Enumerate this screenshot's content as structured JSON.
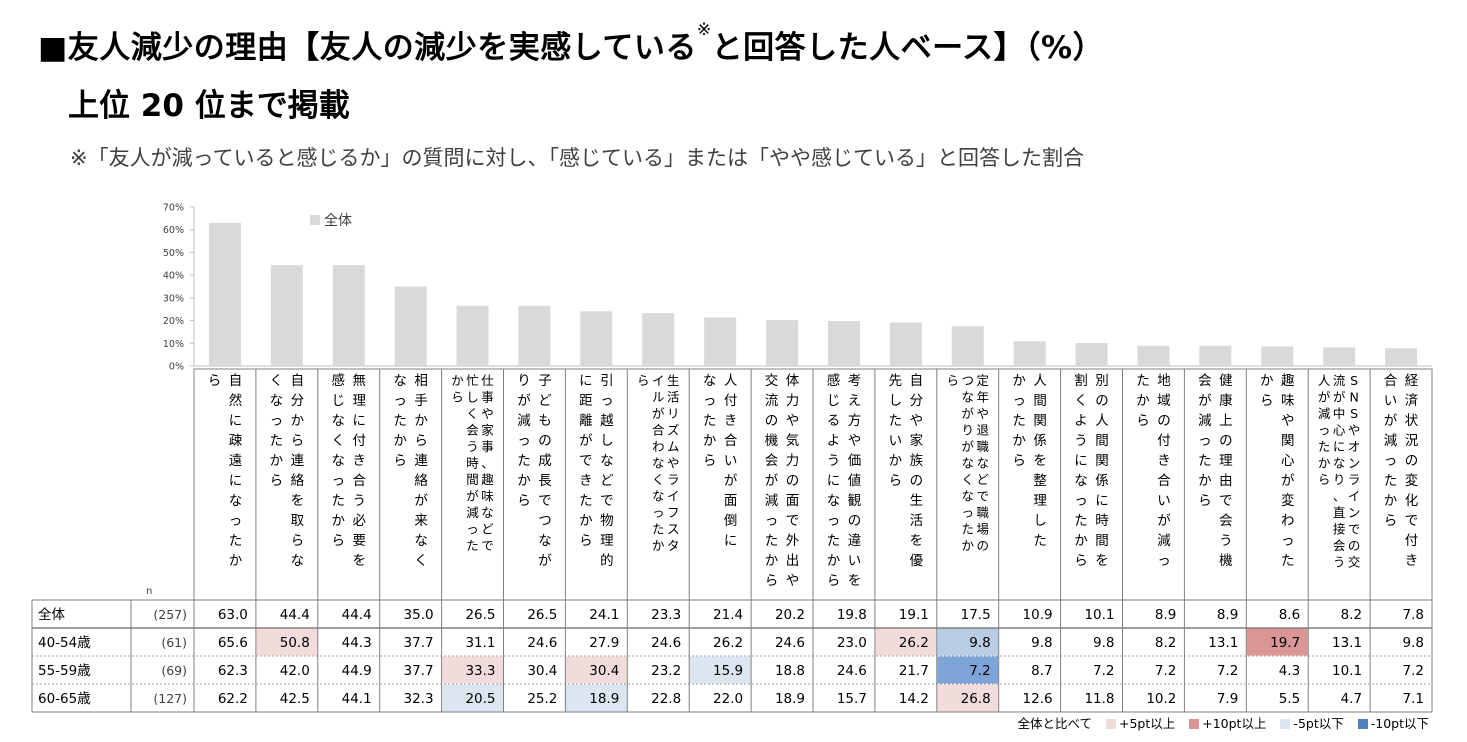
{
  "title_main": "■友人減少の理由【友人の減少を実感している",
  "title_mark": "※",
  "title_tail": "と回答した人ベース】（%）",
  "subtitle": "上位 20 位まで掲載",
  "note": "※「友人が減っていると感じるか」の質問に対し、「感じている」または「やや感じている」と回答した割合",
  "n_label": "n",
  "legend_bottom": {
    "prefix": "全体と比べて",
    "items": [
      {
        "label": "+5pt以上",
        "color": "#f2dcdb"
      },
      {
        "label": "+10pt以上",
        "color": "#d99694"
      },
      {
        "label": "-5pt以下",
        "color": "#dce6f1"
      },
      {
        "label": "-10pt以下",
        "color": "#4f81bd"
      }
    ]
  },
  "colors": {
    "bar": "#d9d9d9",
    "plus5": "#f2dcdb",
    "plus10": "#d99694",
    "minus5": "#dce6f1",
    "minus5_mid": "#b8cce4",
    "minus10": "#7fa4d9"
  },
  "chart_data": {
    "type": "bar",
    "legend": "全体",
    "ylim": [
      0,
      70
    ],
    "yticks": [
      "0%",
      "10%",
      "20%",
      "30%",
      "40%",
      "50%",
      "60%",
      "70%"
    ],
    "grid": false,
    "categories": [
      {
        "lines": [
          "自然に疎遠になったか",
          "ら"
        ]
      },
      {
        "lines": [
          "自分から連絡を取らな",
          "くなったから"
        ]
      },
      {
        "lines": [
          "無理に付き合う必要を",
          "感じなくなったから"
        ]
      },
      {
        "lines": [
          "相手から連絡が来なく",
          "なったから"
        ]
      },
      {
        "lines": [
          "仕事や家事、趣味などで",
          "忙しく会う時間が減った",
          "から"
        ]
      },
      {
        "lines": [
          "子どもの成長でつなが",
          "りが減ったから"
        ]
      },
      {
        "lines": [
          "引っ越しなどで物理的",
          "に距離ができたから"
        ]
      },
      {
        "lines": [
          "生活リズムやライフスタ",
          "イルが合わなくなったか",
          "ら"
        ]
      },
      {
        "lines": [
          "人付き合いが面倒に",
          "なったから"
        ]
      },
      {
        "lines": [
          "体力や気力の面で外出や",
          "交流の機会が減ったから"
        ]
      },
      {
        "lines": [
          "考え方や価値観の違いを",
          "感じるようになったから"
        ]
      },
      {
        "lines": [
          "自分や家族の生活を優",
          "先したいから"
        ]
      },
      {
        "lines": [
          "定年や退職などで職場の",
          "つながりがなくなったか",
          "ら"
        ]
      },
      {
        "lines": [
          "人間関係を整理した",
          "かったから"
        ]
      },
      {
        "lines": [
          "別の人間関係に時間を",
          "割くようになったから"
        ]
      },
      {
        "lines": [
          "地域の付き合いが減っ",
          "たから"
        ]
      },
      {
        "lines": [
          "健康上の理由で会う機",
          "会が減ったから"
        ]
      },
      {
        "lines": [
          "趣味や関心が変わった",
          "から"
        ]
      },
      {
        "lines": [
          "SNSやオンラインでの交",
          "流が中心になり、直接会う",
          "人が減ったから"
        ]
      },
      {
        "lines": [
          "経済状況の変化で付き",
          "合いが減ったから"
        ]
      }
    ],
    "series": [
      {
        "name": "全体",
        "values": [
          63.0,
          44.4,
          44.4,
          35.0,
          26.5,
          26.5,
          24.1,
          23.3,
          21.4,
          20.2,
          19.8,
          19.1,
          17.5,
          10.9,
          10.1,
          8.9,
          8.9,
          8.6,
          8.2,
          7.8
        ]
      }
    ],
    "table": {
      "rows": [
        {
          "label": "全体",
          "n": "(257)",
          "values": [
            "63.0",
            "44.4",
            "44.4",
            "35.0",
            "26.5",
            "26.5",
            "24.1",
            "23.3",
            "21.4",
            "20.2",
            "19.8",
            "19.1",
            "17.5",
            "10.9",
            "10.1",
            "8.9",
            "8.9",
            "8.6",
            "8.2",
            "7.8"
          ],
          "hl": [
            "",
            "",
            "",
            "",
            "",
            "",
            "",
            "",
            "",
            "",
            "",
            "",
            "",
            "",
            "",
            "",
            "",
            "",
            "",
            ""
          ]
        },
        {
          "label": "40-54歳",
          "n": "(61)",
          "values": [
            "65.6",
            "50.8",
            "44.3",
            "37.7",
            "31.1",
            "24.6",
            "27.9",
            "24.6",
            "26.2",
            "24.6",
            "23.0",
            "26.2",
            "9.8",
            "9.8",
            "9.8",
            "8.2",
            "13.1",
            "19.7",
            "13.1",
            "9.8"
          ],
          "hl": [
            "",
            "plus5",
            "",
            "",
            "",
            "",
            "",
            "",
            "",
            "",
            "",
            "plus5",
            "minus5_mid",
            "",
            "",
            "",
            "",
            "plus10",
            "",
            ""
          ]
        },
        {
          "label": "55-59歳",
          "n": "(69)",
          "values": [
            "62.3",
            "42.0",
            "44.9",
            "37.7",
            "33.3",
            "30.4",
            "30.4",
            "23.2",
            "15.9",
            "18.8",
            "24.6",
            "21.7",
            "7.2",
            "8.7",
            "7.2",
            "7.2",
            "7.2",
            "4.3",
            "10.1",
            "7.2"
          ],
          "hl": [
            "",
            "",
            "",
            "",
            "plus5",
            "",
            "plus5",
            "",
            "minus5",
            "",
            "",
            "",
            "minus10",
            "",
            "",
            "",
            "",
            "",
            "",
            ""
          ]
        },
        {
          "label": "60-65歳",
          "n": "(127)",
          "values": [
            "62.2",
            "42.5",
            "44.1",
            "32.3",
            "20.5",
            "25.2",
            "18.9",
            "22.8",
            "22.0",
            "18.9",
            "15.7",
            "14.2",
            "26.8",
            "12.6",
            "11.8",
            "10.2",
            "7.9",
            "5.5",
            "4.7",
            "7.1"
          ],
          "hl": [
            "",
            "",
            "",
            "",
            "minus5",
            "",
            "minus5",
            "",
            "",
            "",
            "",
            "",
            "plus5",
            "",
            "",
            "",
            "",
            "",
            "",
            ""
          ]
        }
      ]
    }
  }
}
